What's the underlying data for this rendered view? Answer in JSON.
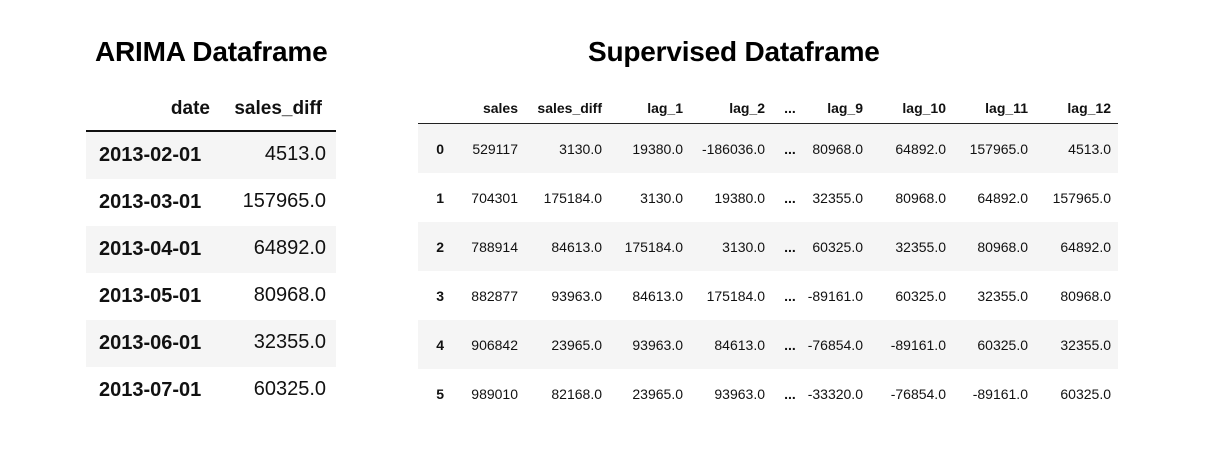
{
  "arima": {
    "title": "ARIMA Dataframe",
    "columns": [
      "date",
      "sales_diff"
    ],
    "rows": [
      {
        "date": "2013-02-01",
        "sales_diff": "4513.0"
      },
      {
        "date": "2013-03-01",
        "sales_diff": "157965.0"
      },
      {
        "date": "2013-04-01",
        "sales_diff": "64892.0"
      },
      {
        "date": "2013-05-01",
        "sales_diff": "80968.0"
      },
      {
        "date": "2013-06-01",
        "sales_diff": "32355.0"
      },
      {
        "date": "2013-07-01",
        "sales_diff": "60325.0"
      }
    ]
  },
  "supervised": {
    "title": "Supervised Dataframe",
    "columns": [
      "sales",
      "sales_diff",
      "lag_1",
      "lag_2",
      "...",
      "lag_9",
      "lag_10",
      "lag_11",
      "lag_12"
    ],
    "rows": [
      {
        "index": "0",
        "cells": [
          "529117",
          "3130.0",
          "19380.0",
          "-186036.0",
          "...",
          "80968.0",
          "64892.0",
          "157965.0",
          "4513.0"
        ]
      },
      {
        "index": "1",
        "cells": [
          "704301",
          "175184.0",
          "3130.0",
          "19380.0",
          "...",
          "32355.0",
          "80968.0",
          "64892.0",
          "157965.0"
        ]
      },
      {
        "index": "2",
        "cells": [
          "788914",
          "84613.0",
          "175184.0",
          "3130.0",
          "...",
          "60325.0",
          "32355.0",
          "80968.0",
          "64892.0"
        ]
      },
      {
        "index": "3",
        "cells": [
          "882877",
          "93963.0",
          "84613.0",
          "175184.0",
          "...",
          "-89161.0",
          "60325.0",
          "32355.0",
          "80968.0"
        ]
      },
      {
        "index": "4",
        "cells": [
          "906842",
          "23965.0",
          "93963.0",
          "84613.0",
          "...",
          "-76854.0",
          "-89161.0",
          "60325.0",
          "32355.0"
        ]
      },
      {
        "index": "5",
        "cells": [
          "989010",
          "82168.0",
          "23965.0",
          "93963.0",
          "...",
          "-33320.0",
          "-76854.0",
          "-89161.0",
          "60325.0"
        ]
      }
    ]
  }
}
